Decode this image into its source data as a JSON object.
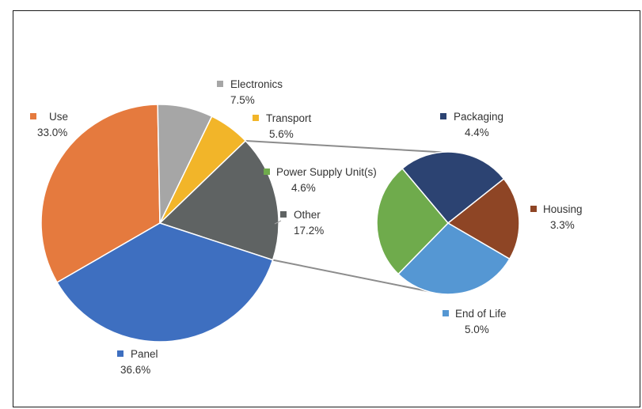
{
  "chart_data": {
    "type": "pie",
    "main_pie": {
      "slices": [
        {
          "name": "Use",
          "value": 33.0,
          "label": "33.0%",
          "color": "#E57A3E"
        },
        {
          "name": "Electronics",
          "value": 7.5,
          "label": "7.5%",
          "color": "#A6A6A6"
        },
        {
          "name": "Transport",
          "value": 5.6,
          "label": "5.6%",
          "color": "#F2B529"
        },
        {
          "name": "Other",
          "value": 17.2,
          "label": "17.2%",
          "color": "#5F6363"
        },
        {
          "name": "Panel",
          "value": 36.6,
          "label": "36.6%",
          "color": "#3E6FC0"
        }
      ]
    },
    "breakdown_pie": {
      "of": "Other",
      "slices": [
        {
          "name": "Packaging",
          "value": 4.4,
          "label": "4.4%",
          "color": "#2C4372"
        },
        {
          "name": "Housing",
          "value": 3.3,
          "label": "3.3%",
          "color": "#8E4525"
        },
        {
          "name": "End of Life",
          "value": 5.0,
          "label": "5.0%",
          "color": "#5597D3"
        },
        {
          "name": "Power Supply Unit(s)",
          "value": 4.6,
          "label": "4.6%",
          "color": "#6FAB4C"
        }
      ]
    },
    "legend": "none"
  }
}
